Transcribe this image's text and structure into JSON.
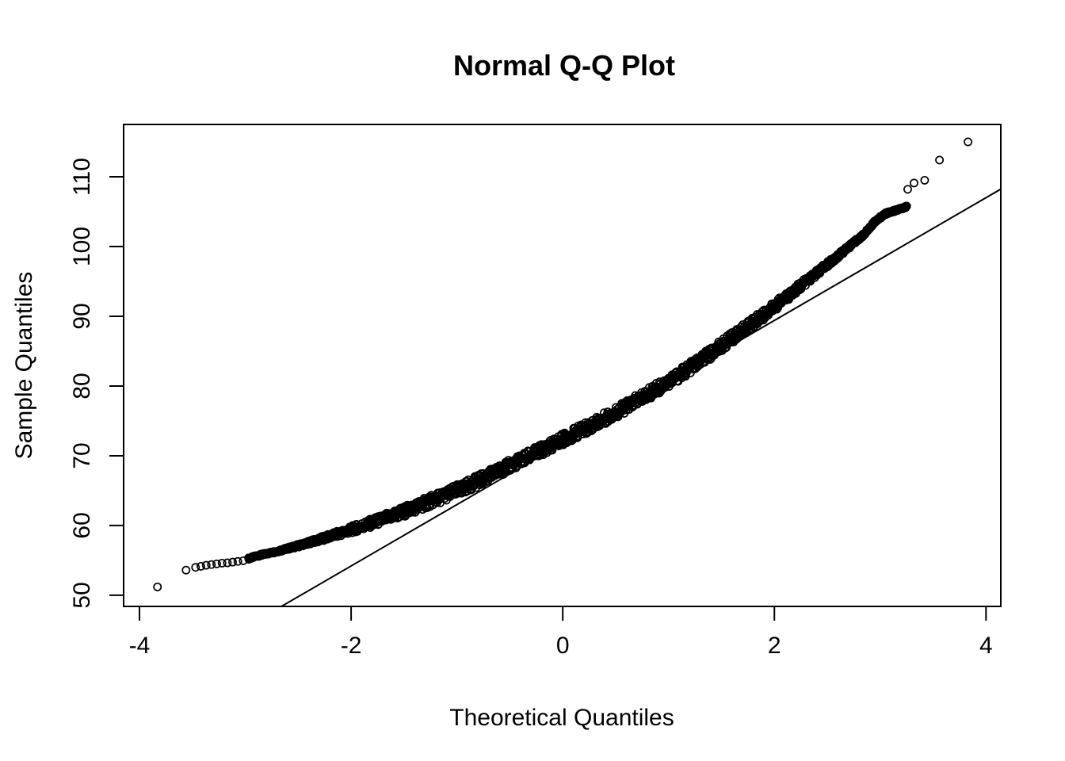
{
  "figure": {
    "background": "#ffffff",
    "foreground": "#000000"
  },
  "chart_data": {
    "type": "scatter",
    "title": "Normal Q-Q Plot",
    "xlabel": "Theoretical Quantiles",
    "ylabel": "Sample Quantiles",
    "xlim": [
      -4.15,
      4.14
    ],
    "ylim": [
      48.4,
      117.5
    ],
    "x_ticks": [
      -4,
      -2,
      0,
      2,
      4
    ],
    "y_ticks": [
      50,
      60,
      70,
      80,
      90,
      100,
      110
    ],
    "grid": false,
    "legend": null,
    "point_style": {
      "shape": "open-circle",
      "color": "#000000",
      "radius_px": 4.6,
      "stroke_px": 1.7
    },
    "reference_line": {
      "description": "qqline fit through sample quartiles, v = intercept + slope * q",
      "slope": 8.8,
      "intercept": 71.8,
      "color": "#000000",
      "x_enter_plot": -2.66,
      "x_exit_plot": 4.14
    },
    "curve_anchors": {
      "description": "empirical S-curve of sample quantile v versus theoretical quantile q, read from plot",
      "q": [
        -3.83,
        -3.56,
        -3.44,
        -3.3,
        -3.15,
        -3.0,
        -2.9,
        -2.7,
        -2.5,
        -2.3,
        -2.1,
        -1.9,
        -1.7,
        -1.5,
        -1.3,
        -1.1,
        -0.9,
        -0.7,
        -0.5,
        -0.3,
        -0.1,
        0.1,
        0.3,
        0.5,
        0.7,
        0.9,
        1.1,
        1.3,
        1.5,
        1.7,
        1.9,
        2.1,
        2.3,
        2.5,
        2.7,
        2.85,
        2.95,
        3.05,
        3.15,
        3.25
      ],
      "v": [
        51.2,
        53.6,
        54.1,
        54.5,
        54.8,
        55.1,
        55.6,
        56.3,
        57.1,
        58.0,
        58.9,
        59.9,
        60.9,
        62.0,
        63.2,
        64.4,
        65.7,
        67.1,
        68.6,
        70.1,
        71.6,
        73.1,
        74.6,
        76.2,
        77.9,
        79.7,
        81.6,
        83.6,
        85.8,
        88.0,
        90.2,
        92.6,
        95.0,
        97.4,
        99.9,
        101.8,
        103.6,
        104.7,
        105.2,
        105.7
      ]
    },
    "lower_tail_points": [
      [
        -3.83,
        51.2
      ],
      [
        -3.56,
        53.6
      ],
      [
        -3.47,
        54.0
      ],
      [
        -3.42,
        54.15
      ],
      [
        -3.37,
        54.3
      ],
      [
        -3.32,
        54.4
      ],
      [
        -3.27,
        54.5
      ],
      [
        -3.22,
        54.6
      ],
      [
        -3.17,
        54.65
      ],
      [
        -3.12,
        54.75
      ],
      [
        -3.07,
        54.85
      ],
      [
        -3.02,
        54.95
      ]
    ],
    "upper_tail_points": [
      [
        3.0,
        104.3
      ],
      [
        3.03,
        104.6
      ],
      [
        3.06,
        104.8
      ],
      [
        3.09,
        105.0
      ],
      [
        3.12,
        105.15
      ],
      [
        3.15,
        105.3
      ],
      [
        3.18,
        105.4
      ],
      [
        3.21,
        105.5
      ],
      [
        3.24,
        105.6
      ],
      [
        3.26,
        108.2
      ],
      [
        3.32,
        109.1
      ],
      [
        3.42,
        109.5
      ],
      [
        3.56,
        112.4
      ],
      [
        3.83,
        115.0
      ]
    ],
    "dense_band": {
      "description": "heavily overplotted open circles forming a solid band along the curve",
      "q_start": -2.97,
      "q_end": 3.25,
      "circles": 1600,
      "max_half_width_v": 0.85,
      "min_half_width_v": 0.12,
      "taper_center_q": 0.15,
      "taper_scale_q": 2.35
    }
  }
}
